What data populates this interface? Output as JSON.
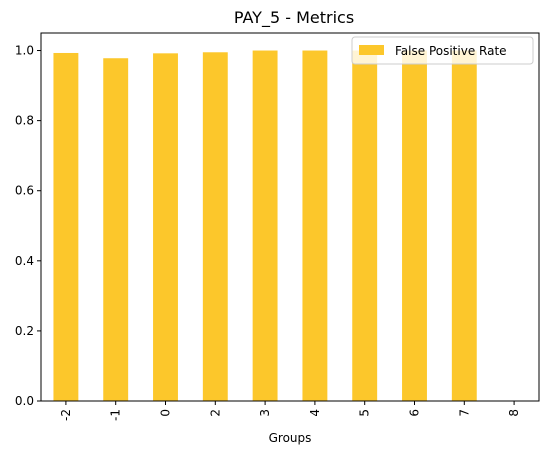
{
  "chart_data": {
    "type": "bar",
    "title": "PAY_5 - Metrics",
    "xlabel": "Groups",
    "ylabel": "",
    "categories": [
      "-2",
      "-1",
      "0",
      "2",
      "3",
      "4",
      "5",
      "6",
      "7",
      "8"
    ],
    "series": [
      {
        "name": "False Positive Rate",
        "color": "#fcc72b",
        "values": [
          0.993,
          0.978,
          0.992,
          0.995,
          1.0,
          1.0,
          1.0,
          1.0,
          1.0,
          null
        ]
      }
    ],
    "ylim": [
      0,
      1.05
    ],
    "yticks": [
      "0.0",
      "0.2",
      "0.4",
      "0.6",
      "0.8",
      "1.0"
    ],
    "grid": false,
    "legend_position": "top-right"
  }
}
